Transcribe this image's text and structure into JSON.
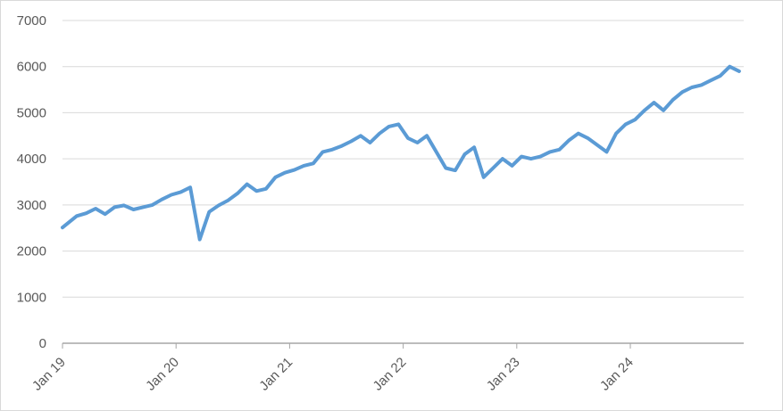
{
  "chart_data": {
    "type": "line",
    "title": "",
    "xlabel": "",
    "ylabel": "",
    "ylim": [
      0,
      7000
    ],
    "xlim": [
      "2019-01",
      "2024-12"
    ],
    "grid": true,
    "legend": "none",
    "y_ticks": [
      "0",
      "1000",
      "2000",
      "3000",
      "4000",
      "5000",
      "6000",
      "7000"
    ],
    "x_tick_labels": [
      "Jan 19",
      "Jan 20",
      "Jan 21",
      "Jan 22",
      "Jan 23",
      "Jan 24"
    ],
    "x_tick_dates": [
      "2019-01",
      "2020-01",
      "2021-01",
      "2022-01",
      "2023-01",
      "2024-01"
    ],
    "line_color": "#5b9bd5",
    "series": [
      {
        "x": [
          "2019-01",
          "2019-02",
          "2019-03",
          "2019-04",
          "2019-05",
          "2019-06",
          "2019-07",
          "2019-08",
          "2019-09",
          "2019-10",
          "2019-11",
          "2019-12",
          "2020-01",
          "2020-02",
          "2020-03",
          "2020-04",
          "2020-05",
          "2020-06",
          "2020-07",
          "2020-08",
          "2020-09",
          "2020-10",
          "2020-11",
          "2020-12",
          "2021-01",
          "2021-02",
          "2021-03",
          "2021-04",
          "2021-05",
          "2021-06",
          "2021-07",
          "2021-08",
          "2021-09",
          "2021-10",
          "2021-11",
          "2021-12",
          "2022-01",
          "2022-02",
          "2022-03",
          "2022-04",
          "2022-05",
          "2022-06",
          "2022-07",
          "2022-08",
          "2022-09",
          "2022-10",
          "2022-11",
          "2022-12",
          "2023-01",
          "2023-02",
          "2023-03",
          "2023-04",
          "2023-05",
          "2023-06",
          "2023-07",
          "2023-08",
          "2023-09",
          "2023-10",
          "2023-11",
          "2023-12",
          "2024-01",
          "2024-02",
          "2024-03",
          "2024-04",
          "2024-05",
          "2024-06",
          "2024-07",
          "2024-08",
          "2024-09",
          "2024-10",
          "2024-11",
          "2024-12"
        ],
        "values": [
          2510,
          2760,
          2820,
          2920,
          2800,
          2950,
          2990,
          2900,
          2950,
          3000,
          3120,
          3220,
          3280,
          3380,
          2250,
          2850,
          2990,
          3100,
          3250,
          3450,
          3300,
          3350,
          3600,
          3700,
          3760,
          3850,
          3900,
          4150,
          4200,
          4280,
          4380,
          4500,
          4350,
          4550,
          4700,
          4750,
          4450,
          4350,
          4500,
          4150,
          3800,
          3750,
          4100,
          4250,
          3600,
          3800,
          4000,
          3850,
          4050,
          4000,
          4050,
          4150,
          4200,
          4400,
          4550,
          4450,
          4300,
          4150,
          4550,
          4750,
          4850,
          5050,
          5220,
          5050,
          5280,
          5450,
          5550,
          5600,
          5700,
          5800,
          6000,
          5900
        ]
      }
    ]
  }
}
